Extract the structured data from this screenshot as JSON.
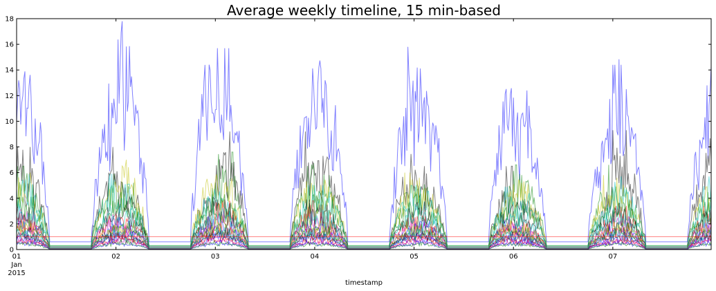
{
  "chart_data": {
    "type": "line",
    "title": "Average weekly timeline, 15 min-based",
    "xlabel": "timestamp",
    "ylabel": "",
    "ylim": [
      0,
      18
    ],
    "yticks": [
      0,
      2,
      4,
      6,
      8,
      10,
      12,
      14,
      16,
      18
    ],
    "xlim": [
      "2015-01-01T00:00",
      "2015-01-07T23:45"
    ],
    "x_resolution": "15 min",
    "xticks": [
      {
        "x": "2015-01-01",
        "lines": [
          "01",
          "Jan",
          "2015"
        ]
      },
      {
        "x": "2015-01-02",
        "lines": [
          "02"
        ]
      },
      {
        "x": "2015-01-03",
        "lines": [
          "03"
        ]
      },
      {
        "x": "2015-01-04",
        "lines": [
          "04"
        ]
      },
      {
        "x": "2015-01-05",
        "lines": [
          "05"
        ]
      },
      {
        "x": "2015-01-06",
        "lines": [
          "06"
        ]
      },
      {
        "x": "2015-01-07",
        "lines": [
          "07"
        ]
      }
    ],
    "legend": "none",
    "grid": false,
    "line_alpha": 0.5,
    "series": [
      {
        "color": "#0000ff",
        "daily_peaks": [
          15.3,
          17.8,
          15.7,
          15.8,
          15.6,
          12.4,
          14.4
        ],
        "daily_baseline": 0.6
      },
      {
        "color": "#008000",
        "daily_peaks": [
          6.5,
          5.2,
          7.6,
          5.8,
          5.5,
          6.6,
          5.3
        ],
        "daily_baseline": 0.3
      },
      {
        "color": "#000000",
        "daily_peaks": [
          8.0,
          6.1,
          9.2,
          7.7,
          6.5,
          4.5,
          9.3
        ],
        "daily_baseline": 0.2
      },
      {
        "color": "#bfbf00",
        "daily_peaks": [
          6.0,
          7.0,
          6.2,
          6.0,
          5.6,
          5.8,
          5.8
        ],
        "daily_baseline": 0.3
      },
      {
        "color": "#00bfbf",
        "daily_peaks": [
          5.9,
          5.1,
          5.0,
          5.0,
          4.9,
          4.4,
          5.7
        ],
        "daily_baseline": 0.3
      },
      {
        "color": "#ff0000",
        "daily_peaks": [
          2.9,
          2.9,
          3.8,
          2.9,
          2.6,
          2.3,
          3.4
        ],
        "daily_baseline": 0.2
      },
      {
        "color": "#bf00bf",
        "daily_peaks": [
          3.0,
          2.4,
          3.0,
          2.5,
          2.4,
          2.0,
          2.6
        ],
        "daily_baseline": 0.2
      },
      {
        "color": "#0000ff",
        "daily_peaks": [
          2.2,
          2.6,
          2.2,
          2.0,
          2.3,
          1.8,
          2.1
        ],
        "daily_baseline": 0.1
      },
      {
        "color": "#008000",
        "daily_peaks": [
          4.1,
          4.3,
          4.7,
          4.1,
          4.3,
          4.0,
          3.9
        ],
        "daily_baseline": 0.2
      },
      {
        "color": "#000000",
        "daily_peaks": [
          3.3,
          3.8,
          3.9,
          3.5,
          3.7,
          3.2,
          3.6
        ],
        "daily_baseline": 0.1
      },
      {
        "color": "#ff0000",
        "daily_peaks": [
          1.8,
          1.6,
          2.0,
          1.7,
          1.8,
          1.5,
          1.9
        ],
        "daily_baseline": 0.1
      },
      {
        "color": "#00bfbf",
        "daily_peaks": [
          3.6,
          3.2,
          3.4,
          3.1,
          3.6,
          2.9,
          3.5
        ],
        "daily_baseline": 0.2
      },
      {
        "color": "#bf00bf",
        "daily_peaks": [
          1.5,
          1.8,
          1.6,
          1.4,
          1.5,
          1.3,
          1.7
        ],
        "daily_baseline": 0.1
      },
      {
        "color": "#0000ff",
        "daily_peaks": [
          1.2,
          1.4,
          1.3,
          1.2,
          1.3,
          1.0,
          1.2
        ],
        "daily_baseline": 0.05
      },
      {
        "color": "#bfbf00",
        "daily_peaks": [
          2.4,
          2.1,
          2.6,
          2.2,
          2.3,
          2.0,
          2.4
        ],
        "daily_baseline": 0.1
      },
      {
        "color": "#008000",
        "daily_peaks": [
          1.9,
          2.2,
          2.0,
          1.8,
          2.0,
          1.7,
          2.1
        ],
        "daily_baseline": 0.1
      },
      {
        "color": "#000000",
        "daily_peaks": [
          1.4,
          1.3,
          1.5,
          1.3,
          1.4,
          1.2,
          1.4
        ],
        "daily_baseline": 0.05
      },
      {
        "color": "#ff0000",
        "daily_peaks": [
          0.9,
          1.1,
          1.0,
          0.9,
          1.0,
          0.8,
          1.0
        ],
        "daily_baseline": 0.05
      },
      {
        "color": "#00bfbf",
        "daily_peaks": [
          1.6,
          1.5,
          1.7,
          1.5,
          1.6,
          1.4,
          1.6
        ],
        "daily_baseline": 0.1
      },
      {
        "color": "#bf00bf",
        "daily_peaks": [
          0.8,
          0.9,
          0.8,
          0.7,
          0.8,
          0.7,
          0.9
        ],
        "daily_baseline": 0.05
      },
      {
        "color": "#0000ff",
        "daily_peaks": [
          0.7,
          0.6,
          0.7,
          0.6,
          0.7,
          0.6,
          0.7
        ],
        "daily_baseline": 0.02
      },
      {
        "color": "#008000",
        "daily_peaks": [
          0.6,
          0.7,
          0.6,
          0.5,
          0.6,
          0.5,
          0.6
        ],
        "daily_baseline": 0.02
      },
      {
        "color": "#ff0000",
        "daily_peaks": [
          1.0,
          1.0,
          1.0,
          1.0,
          1.0,
          1.0,
          1.0
        ],
        "daily_baseline": 1.0
      }
    ]
  }
}
